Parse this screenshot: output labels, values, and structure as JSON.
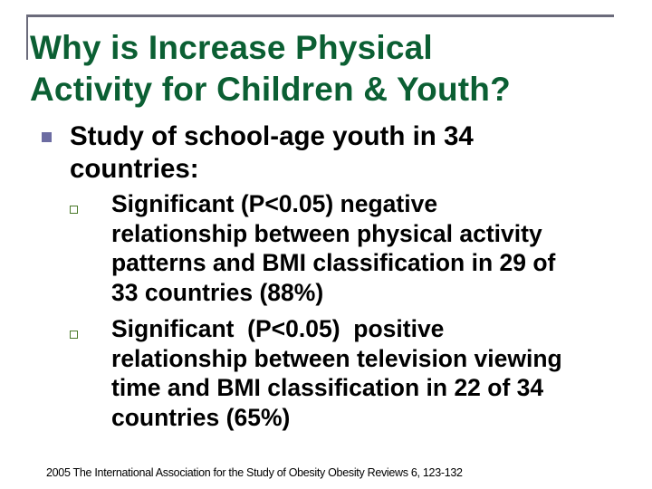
{
  "slide": {
    "title_lines": [
      "Why is Increase Physical",
      "Activity for Children & Youth?"
    ],
    "main_bullet": {
      "icon": "filled-square-bullet",
      "lines": [
        "Study of school-age youth in 34",
        "countries:"
      ]
    },
    "sub_bullets": [
      {
        "icon": "hollow-square-bullet",
        "lines": [
          "Significant (P<0.05) negative",
          "relationship between physical activity",
          "patterns and BMI classification in 29 of",
          "33 countries (88%)"
        ]
      },
      {
        "icon": "hollow-square-bullet",
        "lines": [
          "Significant  (P<0.05)  positive",
          "relationship between television viewing",
          "time and BMI classification in 22 of 34",
          "countries (65%)"
        ]
      }
    ],
    "footer": "2005 The International Association for the Study of Obesity Obesity Reviews 6, 123-132"
  },
  "colors": {
    "title": "#0b5f33",
    "frame": "#6b6b7b",
    "main_bullet": "#6c6ca2",
    "sub_bullet": "#4a7a2a",
    "text": "#000000",
    "background": "#ffffff"
  }
}
